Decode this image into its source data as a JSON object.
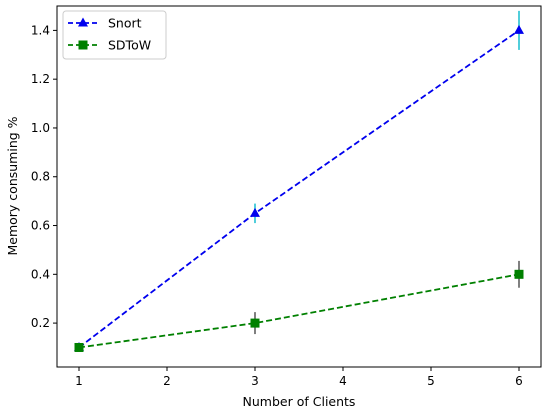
{
  "chart_data": {
    "type": "line",
    "xlabel": "Number of Clients",
    "ylabel": "Memory consuming %",
    "x": [
      1,
      3,
      6
    ],
    "xlim": [
      0.75,
      6.25
    ],
    "ylim": [
      0.02,
      1.5
    ],
    "xticks": [
      1,
      2,
      3,
      4,
      5,
      6
    ],
    "yticks": [
      0.2,
      0.4,
      0.6,
      0.8,
      1.0,
      1.2,
      1.4
    ],
    "ytick_labels": [
      "0.2",
      "0.4",
      "0.6",
      "0.8",
      "1.0",
      "1.2",
      "1.4"
    ],
    "grid": false,
    "legend_position": "top-left",
    "series": [
      {
        "name": "Snort",
        "values": [
          0.1,
          0.65,
          1.4
        ],
        "errors": [
          0.01,
          0.04,
          0.08
        ],
        "color": "#0000ee",
        "error_color": "#17becf",
        "marker": "triangle",
        "line_style": "dashed"
      },
      {
        "name": "SDToW",
        "values": [
          0.1,
          0.2,
          0.4
        ],
        "errors": [
          0.01,
          0.045,
          0.055
        ],
        "color": "#008000",
        "error_color": "#555555",
        "marker": "square",
        "line_style": "dashed"
      }
    ]
  }
}
